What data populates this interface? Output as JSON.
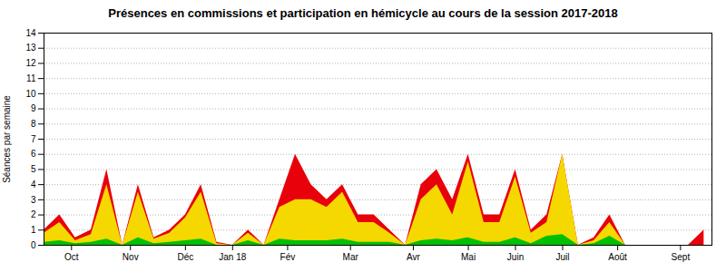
{
  "chart_data": {
    "type": "area",
    "title": "Présences en commissions et participation en hémicycle au cours de la session 2017-2018",
    "ylabel": "Séances par semaine",
    "x": [
      0,
      1,
      2,
      3,
      4,
      5,
      6,
      7,
      8,
      9,
      10,
      11,
      12,
      13,
      14,
      15,
      16,
      17,
      18,
      19,
      20,
      21,
      22,
      23,
      24,
      25,
      26,
      27,
      28,
      29,
      30,
      31,
      32,
      33,
      34,
      35,
      36,
      37,
      38,
      39,
      40,
      41,
      42
    ],
    "xlim": [
      0,
      42.5
    ],
    "xticks": [
      {
        "value": 1.75,
        "label": "Oct"
      },
      {
        "value": 5.5,
        "label": "Nov"
      },
      {
        "value": 9,
        "label": "Déc"
      },
      {
        "value": 12,
        "label": "Jan 18"
      },
      {
        "value": 15.5,
        "label": "Fév"
      },
      {
        "value": 19.5,
        "label": "Mar"
      },
      {
        "value": 23.5,
        "label": "Avr"
      },
      {
        "value": 27,
        "label": "Mai"
      },
      {
        "value": 30,
        "label": "Juin"
      },
      {
        "value": 33,
        "label": "Juil"
      },
      {
        "value": 36.5,
        "label": "Août"
      },
      {
        "value": 40.5,
        "label": "Sept"
      }
    ],
    "ylim": [
      0,
      14
    ],
    "yticks": [
      0,
      1,
      2,
      3,
      4,
      5,
      6,
      7,
      8,
      9,
      10,
      11,
      12,
      13,
      14
    ],
    "grid": true,
    "series": [
      {
        "color": "#e8000a",
        "values": [
          1.0,
          2.0,
          0.5,
          1.0,
          5.0,
          0.0,
          4.0,
          0.5,
          1.0,
          2.0,
          4.0,
          0.2,
          0.0,
          1.0,
          0.0,
          3.0,
          6.0,
          4.0,
          3.0,
          4.0,
          2.0,
          2.0,
          1.0,
          0.0,
          4.0,
          5.0,
          3.0,
          6.0,
          2.0,
          2.0,
          5.0,
          1.0,
          2.0,
          6.0,
          0.0,
          0.5,
          2.0,
          0.0,
          0.0,
          0.0,
          0.0,
          0.0,
          1.0
        ]
      },
      {
        "color": "#f5d800",
        "values": [
          0.8,
          1.5,
          0.3,
          0.7,
          4.0,
          0.0,
          3.5,
          0.4,
          0.8,
          1.8,
          3.5,
          0.1,
          0.0,
          0.8,
          0.0,
          2.5,
          3.0,
          3.0,
          2.5,
          3.5,
          1.5,
          1.5,
          0.8,
          0.0,
          3.0,
          4.0,
          2.0,
          5.5,
          1.5,
          1.5,
          4.5,
          0.8,
          1.5,
          6.0,
          0.0,
          0.3,
          1.5,
          0.0,
          0.0,
          0.0,
          0.0,
          0.0,
          0.0
        ]
      },
      {
        "color": "#00c000",
        "values": [
          0.2,
          0.3,
          0.1,
          0.2,
          0.4,
          0.0,
          0.5,
          0.1,
          0.2,
          0.3,
          0.4,
          0.0,
          0.0,
          0.3,
          0.0,
          0.4,
          0.3,
          0.3,
          0.3,
          0.4,
          0.2,
          0.2,
          0.2,
          0.0,
          0.3,
          0.4,
          0.3,
          0.5,
          0.2,
          0.2,
          0.5,
          0.1,
          0.6,
          0.7,
          0.0,
          0.1,
          0.6,
          0.0,
          0.0,
          0.0,
          0.0,
          0.0,
          0.0
        ]
      }
    ]
  }
}
